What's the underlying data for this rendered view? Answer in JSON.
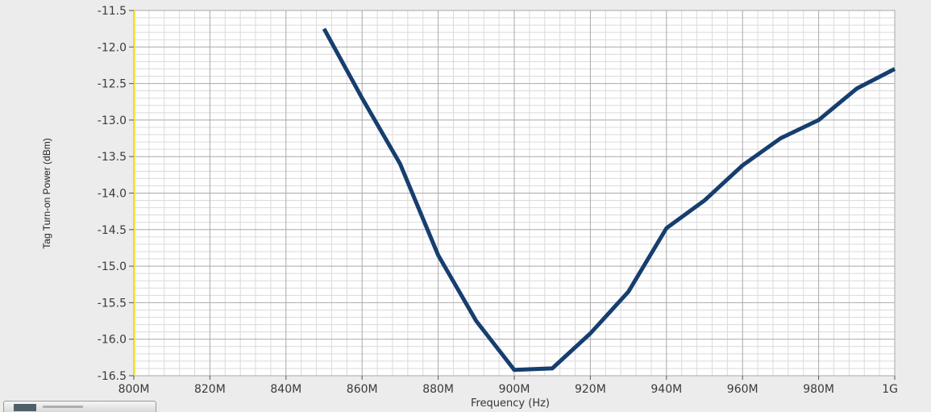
{
  "chart_data": {
    "type": "line",
    "title": "",
    "xlabel": "Frequency (Hz)",
    "ylabel": "Tag Turn-on Power (dBm)",
    "xlim": [
      800,
      1000
    ],
    "ylim": [
      -16.5,
      -11.5
    ],
    "x_ticks": [
      {
        "value": 800,
        "label": "800M"
      },
      {
        "value": 820,
        "label": "820M"
      },
      {
        "value": 840,
        "label": "840M"
      },
      {
        "value": 860,
        "label": "860M"
      },
      {
        "value": 880,
        "label": "880M"
      },
      {
        "value": 900,
        "label": "900M"
      },
      {
        "value": 920,
        "label": "920M"
      },
      {
        "value": 940,
        "label": "940M"
      },
      {
        "value": 960,
        "label": "960M"
      },
      {
        "value": 980,
        "label": "980M"
      },
      {
        "value": 1000,
        "label": "1G"
      }
    ],
    "y_ticks": [
      {
        "value": -11.5,
        "label": "-11.5"
      },
      {
        "value": -12.0,
        "label": "-12.0"
      },
      {
        "value": -12.5,
        "label": "-12.5"
      },
      {
        "value": -13.0,
        "label": "-13.0"
      },
      {
        "value": -13.5,
        "label": "-13.5"
      },
      {
        "value": -14.0,
        "label": "-14.0"
      },
      {
        "value": -14.5,
        "label": "-14.5"
      },
      {
        "value": -15.0,
        "label": "-15.0"
      },
      {
        "value": -15.5,
        "label": "-15.5"
      },
      {
        "value": -16.0,
        "label": "-16.0"
      },
      {
        "value": -16.5,
        "label": "-16.5"
      }
    ],
    "grid": true,
    "series": [
      {
        "color": "#163e6e",
        "x": [
          850,
          860,
          870,
          880,
          890,
          900,
          910,
          920,
          930,
          940,
          950,
          960,
          970,
          980,
          990,
          1000
        ],
        "values": [
          -11.75,
          -12.7,
          -13.6,
          -14.85,
          -15.75,
          -16.42,
          -16.4,
          -15.92,
          -15.35,
          -14.48,
          -14.1,
          -13.62,
          -13.25,
          -13.0,
          -12.57,
          -12.3
        ]
      }
    ]
  }
}
